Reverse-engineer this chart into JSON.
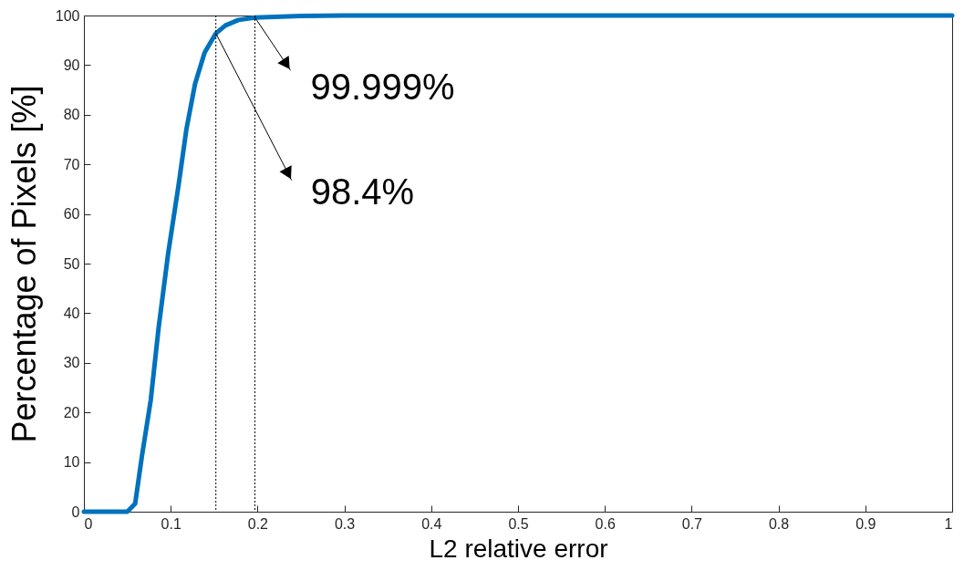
{
  "chart_data": {
    "type": "line",
    "xlabel": "L2 relative error",
    "ylabel": "Percentage of Pixels [%]",
    "x": [
      0,
      0.05,
      0.059,
      0.067,
      0.077,
      0.086,
      0.097,
      0.109,
      0.118,
      0.128,
      0.139,
      0.152,
      0.163,
      0.178,
      0.197,
      0.25,
      0.3,
      0.4,
      1
    ],
    "series": [
      {
        "color": "#0072bd",
        "values": [
          0,
          0,
          1.6,
          11.4,
          22.5,
          37,
          52,
          65.8,
          77,
          86.2,
          92.5,
          96.4,
          98,
          99.1,
          99.6,
          99.9,
          100,
          100,
          100
        ]
      }
    ],
    "xlim": [
      0,
      1
    ],
    "xticks": [
      0,
      0.1,
      0.2,
      0.3,
      0.4,
      0.5,
      0.6,
      0.7,
      0.8,
      0.9,
      1
    ],
    "ylim": [
      0,
      100
    ],
    "yticks": [
      0,
      10,
      20,
      30,
      40,
      50,
      60,
      70,
      80,
      90,
      100
    ],
    "grid": false,
    "marker": "none",
    "line_style": "solid",
    "ref_lines": [
      {
        "axis": "x",
        "value": 0.152,
        "color": "#000000",
        "line_style": "dotted"
      },
      {
        "axis": "x",
        "value": 0.197,
        "color": "#000000",
        "line_style": "dotted"
      }
    ],
    "annotations": [
      {
        "text": "99.999%",
        "x": 0.197,
        "y": 99.6
      },
      {
        "text": "98.4%",
        "x": 0.152,
        "y": 96.4
      }
    ]
  }
}
